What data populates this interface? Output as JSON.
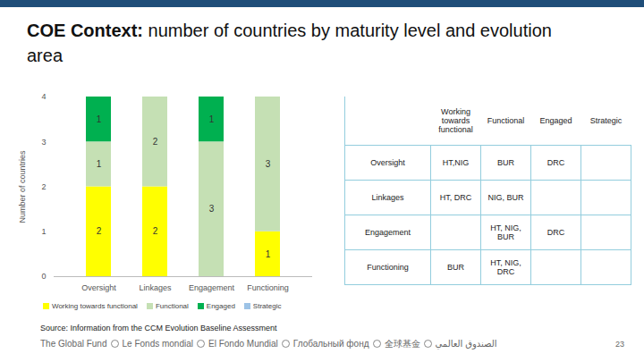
{
  "chart_data": {
    "type": "bar",
    "stacked": true,
    "data_labels": true,
    "legend": "bottom",
    "grid": false,
    "title": "COE Context: number of countries by maturity level and evolution area",
    "y_label": "Number of countries",
    "categories": [
      "Oversight",
      "Linkages",
      "Engagement",
      "Functioning"
    ],
    "series": [
      {
        "name": "Working towards functional",
        "color": "#ffff00",
        "values": [
          2,
          2,
          null,
          1
        ]
      },
      {
        "name": "Functional",
        "color": "#c5e0b4",
        "values": [
          1,
          2,
          3,
          3
        ]
      },
      {
        "name": "Engaged",
        "color": "#00b050",
        "values": [
          1,
          null,
          1,
          null
        ]
      },
      {
        "name": "Strategic",
        "color": "#9dc3e6",
        "values": [
          null,
          null,
          null,
          null
        ]
      }
    ],
    "ylim": [
      0,
      4
    ],
    "yticks": [
      0,
      1,
      2,
      3,
      4
    ]
  },
  "table": {
    "columns": [
      "Working towards functional",
      "Functional",
      "Engaged",
      "Strategic"
    ],
    "rows": [
      {
        "label": "Oversight",
        "cells": [
          "HT,NIG",
          "BUR",
          "DRC",
          null
        ]
      },
      {
        "label": "Linkages",
        "cells": [
          "HT, DRC",
          "NIG, BUR",
          null,
          null
        ]
      },
      {
        "label": "Engagement",
        "cells": [
          null,
          "HT, NIG, BUR",
          "DRC",
          null
        ]
      },
      {
        "label": "Functioning",
        "cells": [
          "BUR",
          "HT, NIG, DRC",
          null,
          null
        ]
      }
    ]
  },
  "source": "Source: Information from the CCM Evolution Baseline Assessment",
  "footer": {
    "names": [
      "The Global Fund",
      "Le Fonds mondial",
      "El Fondo Mundial",
      "Глобальный фонд",
      "全球基金",
      "الصندوق العالمي"
    ],
    "page": "23"
  }
}
